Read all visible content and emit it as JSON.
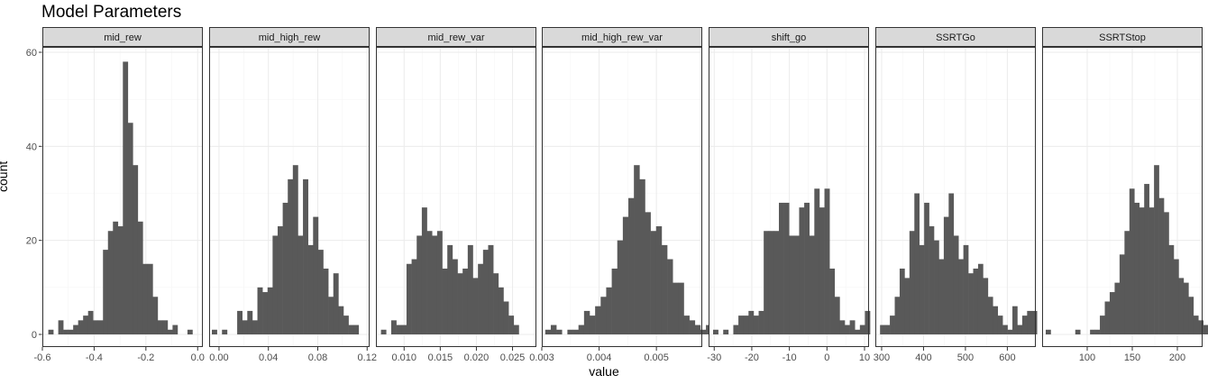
{
  "title": "Model Parameters",
  "xlabel": "value",
  "ylabel": "count",
  "colors": {
    "bar": "#595959",
    "strip": "#d9d9d9",
    "grid_major": "#ebebeb",
    "grid_minor": "#f5f5f5",
    "border": "#333333"
  },
  "chart_data": {
    "type": "bar",
    "subtype": "faceted-histogram",
    "title": "Model Parameters",
    "xlabel": "value",
    "ylabel": "count",
    "ylim": [
      0,
      62
    ],
    "yticks": [
      0,
      20,
      40,
      60
    ],
    "grid": true,
    "panels": [
      {
        "name": "mid_rew",
        "xlim": [
          -0.6,
          0.02
        ],
        "xticks": [
          -0.6,
          -0.4,
          -0.2,
          0.0
        ],
        "xtick_labels": [
          "-0.6",
          "-0.4",
          "-0.2",
          "0.0"
        ],
        "bin_start": -0.577,
        "bin_width": 0.0192,
        "counts": [
          1,
          0,
          3,
          1,
          1,
          2,
          3,
          4,
          5,
          3,
          3,
          18,
          22,
          24,
          23,
          58,
          45,
          36,
          24,
          15,
          15,
          8,
          3,
          3,
          1,
          2,
          0,
          0,
          1
        ]
      },
      {
        "name": "mid_high_rew",
        "xlim": [
          -0.008,
          0.122
        ],
        "xticks": [
          0.0,
          0.04,
          0.08,
          0.12
        ],
        "xtick_labels": [
          "0.00",
          "0.04",
          "0.08",
          "0.12"
        ],
        "bin_start": -0.0058,
        "bin_width": 0.0041,
        "counts": [
          1,
          0,
          1,
          0,
          0,
          5,
          3,
          5,
          3,
          10,
          9,
          10,
          21,
          23,
          28,
          33,
          36,
          21,
          33,
          19,
          25,
          18,
          14,
          8,
          13,
          6,
          4,
          2,
          2
        ]
      },
      {
        "name": "mid_rew_var",
        "xlim": [
          0.0061,
          0.0283
        ],
        "xticks": [
          0.01,
          0.015,
          0.02,
          0.025
        ],
        "xtick_labels": [
          "0.010",
          "0.015",
          "0.020",
          "0.025"
        ],
        "bin_start": 0.0068,
        "bin_width": 0.000706,
        "counts": [
          1,
          0,
          3,
          2,
          2,
          15,
          16,
          21,
          27,
          22,
          21,
          22,
          14,
          19,
          16,
          13,
          14,
          19,
          12,
          15,
          18,
          19,
          13,
          10,
          7,
          4,
          2
        ]
      },
      {
        "name": "mid_high_rew_var",
        "xlim": [
          0.003,
          0.0058
        ],
        "xticks": [
          0.003,
          0.004,
          0.005
        ],
        "xtick_labels": [
          "0.003",
          "0.004",
          "0.005"
        ],
        "bin_start": 0.00306,
        "bin_width": 9.67e-05,
        "counts": [
          1,
          2,
          1,
          0,
          1,
          1,
          2,
          5,
          4,
          6,
          8,
          10,
          14,
          20,
          25,
          29,
          36,
          33,
          26,
          22,
          23,
          19,
          16,
          11,
          11,
          4,
          3,
          2,
          1,
          2,
          1
        ]
      },
      {
        "name": "shift_go",
        "xlim": [
          -31.5,
          11.2
        ],
        "xticks": [
          -30,
          -20,
          -10,
          0,
          10
        ],
        "xtick_labels": [
          "-30",
          "-20",
          "-10",
          "0",
          "10"
        ],
        "bin_start": -30.3,
        "bin_width": 1.347,
        "counts": [
          1,
          0,
          1,
          0,
          2,
          4,
          4,
          5,
          4,
          5,
          22,
          22,
          22,
          28,
          28,
          21,
          21,
          27,
          28,
          21,
          31,
          27,
          31,
          14,
          8,
          3,
          2,
          3,
          1,
          2,
          5
        ]
      },
      {
        "name": "SSRTGo",
        "xlim": [
          285,
          668
        ],
        "xticks": [
          300,
          400,
          500,
          600
        ],
        "xtick_labels": [
          "300",
          "400",
          "500",
          "600"
        ],
        "bin_start": 296.2,
        "bin_width": 11.7,
        "counts": [
          2,
          2,
          4,
          8,
          14,
          12,
          22,
          30,
          19,
          28,
          23,
          20,
          16,
          25,
          30,
          21,
          16,
          19,
          13,
          14,
          15,
          12,
          8,
          6,
          4,
          2,
          1,
          6,
          2,
          4,
          5,
          5
        ]
      },
      {
        "name": "SSRTStop",
        "xlim": [
          50,
          228
        ],
        "xticks": [
          100,
          150,
          200
        ],
        "xtick_labels": [
          "100",
          "150",
          "200"
        ],
        "bin_start": 54.0,
        "bin_width": 5.46,
        "counts": [
          1,
          0,
          0,
          0,
          0,
          0,
          1,
          0,
          0,
          1,
          1,
          4,
          7,
          9,
          11,
          17,
          22,
          31,
          28,
          27,
          32,
          27,
          36,
          29,
          26,
          19,
          16,
          12,
          11,
          8,
          4,
          3,
          2,
          1,
          2,
          1
        ]
      }
    ]
  }
}
